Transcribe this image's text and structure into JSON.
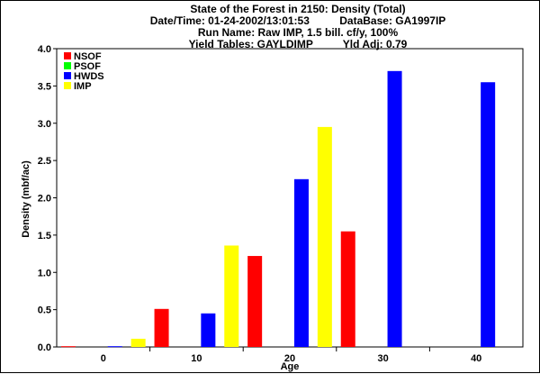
{
  "chart_data": {
    "type": "bar",
    "title_lines": [
      "State of the Forest in 2150: Density (Total)",
      "Date/Time: 01-24-2002/13:01:53          DataBase: GA1997IP",
      "Run Name: Raw IMP, 1.5 bill. cf/y, 100%",
      "Yield Tables: GAYLDIMP          Yld Adj: 0.79"
    ],
    "xlabel": "Age",
    "ylabel": "Density (mbf/ac)",
    "categories": [
      "0",
      "10",
      "20",
      "30",
      "40"
    ],
    "ylim": [
      0,
      4.0
    ],
    "yticks": [
      "0.0",
      "0.5",
      "1.0",
      "1.5",
      "2.0",
      "2.5",
      "3.0",
      "3.5",
      "4.0"
    ],
    "grid": false,
    "legend_position": "top-left",
    "series": [
      {
        "name": "NSOF",
        "color": "#ff0000",
        "values": [
          0.01,
          0.51,
          1.22,
          1.55,
          0
        ]
      },
      {
        "name": "PSOF",
        "color": "#00ff00",
        "values": [
          0,
          0,
          0,
          0,
          0
        ]
      },
      {
        "name": "HWDS",
        "color": "#0000ff",
        "values": [
          0.01,
          0.45,
          2.25,
          3.7,
          3.55
        ]
      },
      {
        "name": "IMP",
        "color": "#ffff00",
        "values": [
          0.11,
          1.36,
          2.95,
          0,
          0
        ]
      }
    ]
  }
}
